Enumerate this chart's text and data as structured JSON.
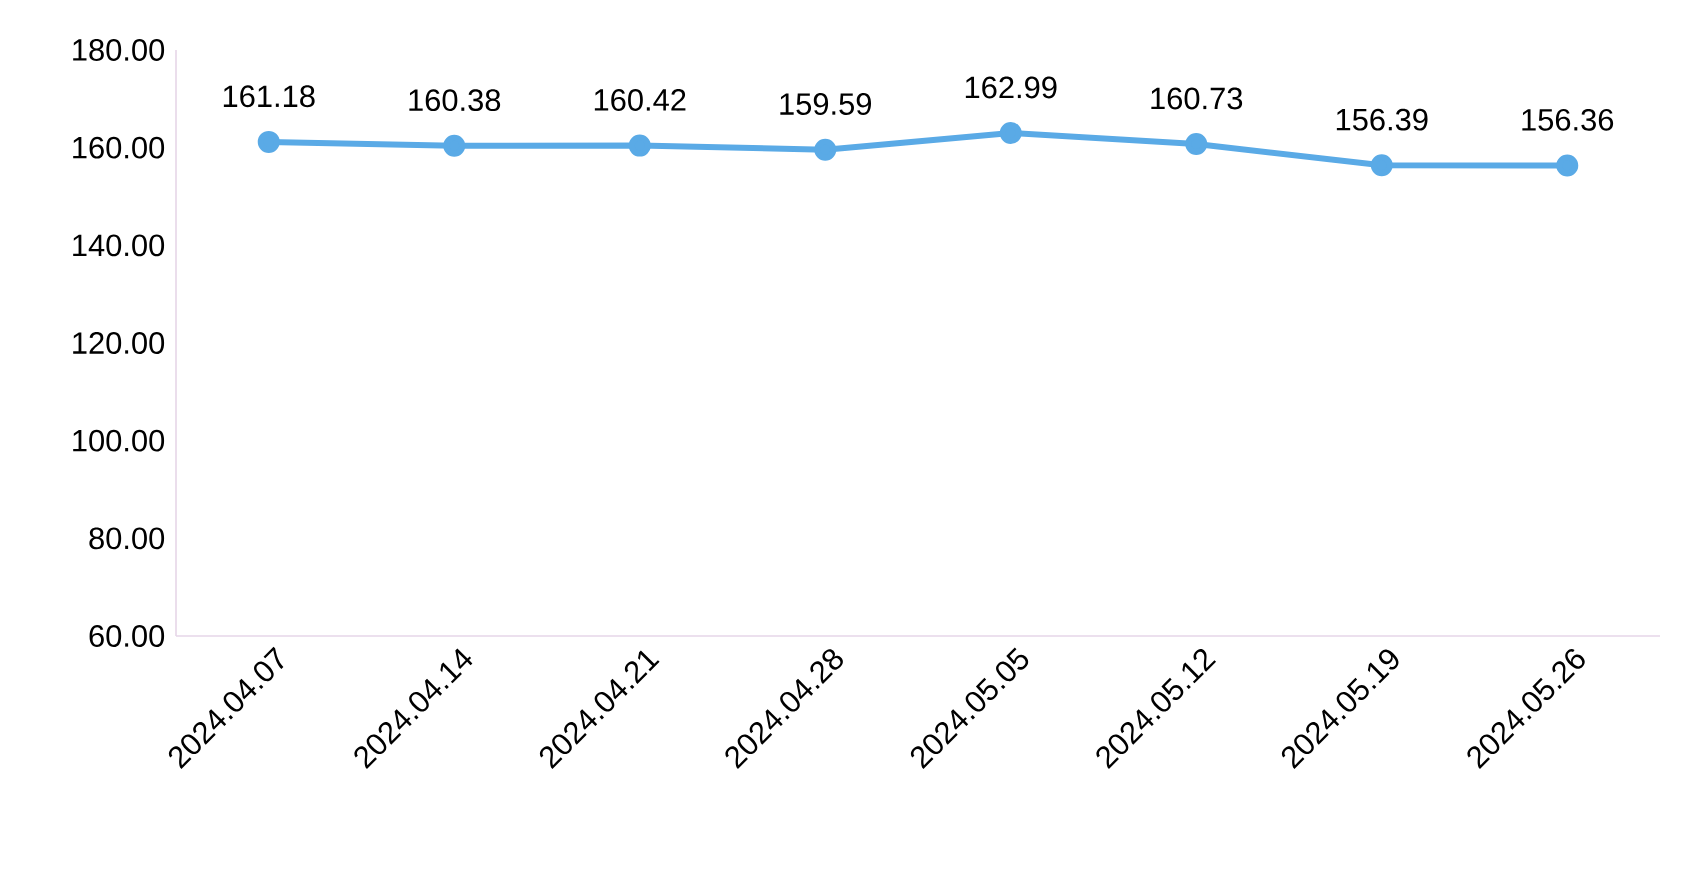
{
  "chart_data": {
    "type": "line",
    "categories": [
      "2024.04.07",
      "2024.04.14",
      "2024.04.21",
      "2024.04.28",
      "2024.05.05",
      "2024.05.12",
      "2024.05.19",
      "2024.05.26"
    ],
    "values": [
      161.18,
      160.38,
      160.42,
      159.59,
      162.99,
      160.73,
      156.39,
      156.36
    ],
    "color": "#5aaae6",
    "ylim": [
      60,
      180
    ],
    "yticks": [
      {
        "value": 60,
        "label": "60.00"
      },
      {
        "value": 80,
        "label": "80.00"
      },
      {
        "value": 100,
        "label": "100.00"
      },
      {
        "value": 120,
        "label": "120.00"
      },
      {
        "value": 140,
        "label": "140.00"
      },
      {
        "value": 160,
        "label": "160.00"
      },
      {
        "value": 180,
        "label": "180.00"
      }
    ],
    "data_labels": true,
    "marker": "circle",
    "line_style": "solid"
  }
}
